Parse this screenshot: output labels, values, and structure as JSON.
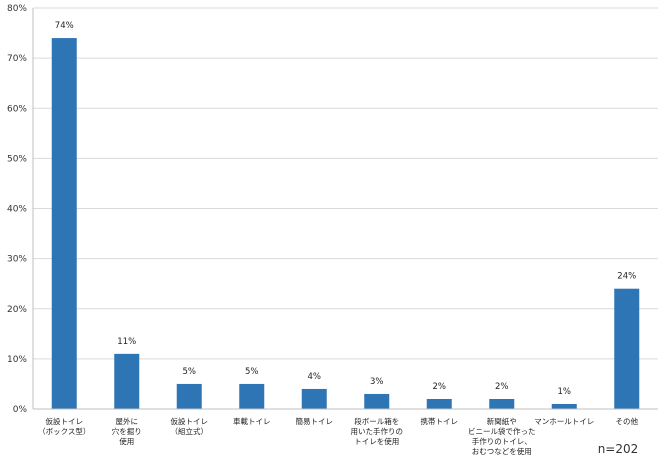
{
  "chart_data": {
    "type": "bar",
    "categories": [
      [
        "仮設トイレ",
        "（ボックス型）"
      ],
      [
        "屋外に",
        "穴を掘り",
        "使用"
      ],
      [
        "仮設トイレ",
        "（組立式）"
      ],
      [
        "車載トイレ"
      ],
      [
        "簡易トイレ"
      ],
      [
        "段ボール箱を",
        "用いた手作りの",
        "トイレを使用"
      ],
      [
        "携帯トイレ"
      ],
      [
        "新聞紙や",
        "ビニール袋で作った",
        "手作りのトイレ、",
        "おむつなどを使用"
      ],
      [
        "マンホールトイレ"
      ],
      [
        "その他"
      ]
    ],
    "values": [
      74,
      11,
      5,
      5,
      4,
      3,
      2,
      2,
      1,
      24
    ],
    "data_labels": [
      "74%",
      "11%",
      "5%",
      "5%",
      "4%",
      "3%",
      "2%",
      "2%",
      "1%",
      "24%"
    ],
    "ylim": [
      0,
      80
    ],
    "yticks": [
      0,
      10,
      20,
      30,
      40,
      50,
      60,
      70,
      80
    ],
    "ytick_labels": [
      "0%",
      "10%",
      "20%",
      "30%",
      "40%",
      "50%",
      "60%",
      "70%",
      "80%"
    ],
    "grid": true,
    "bar_color": "#2e75b6",
    "grid_color": "#d9d9d9",
    "annotation": "n=202"
  }
}
